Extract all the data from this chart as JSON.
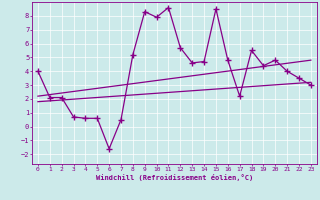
{
  "xlabel": "Windchill (Refroidissement éolien,°C)",
  "xlim": [
    -0.5,
    23.5
  ],
  "ylim": [
    -2.7,
    9.0
  ],
  "yticks": [
    -2,
    -1,
    0,
    1,
    2,
    3,
    4,
    5,
    6,
    7,
    8
  ],
  "xticks": [
    0,
    1,
    2,
    3,
    4,
    5,
    6,
    7,
    8,
    9,
    10,
    11,
    12,
    13,
    14,
    15,
    16,
    17,
    18,
    19,
    20,
    21,
    22,
    23
  ],
  "bg_color": "#cceaea",
  "line_color": "#880088",
  "line1": {
    "x": [
      0,
      1,
      2,
      3,
      4,
      5,
      6,
      7,
      8,
      9,
      10,
      11,
      12,
      13,
      14,
      15,
      16,
      17,
      18,
      19,
      20,
      21,
      22,
      23
    ],
    "y": [
      4.0,
      2.1,
      2.1,
      0.7,
      0.6,
      0.6,
      -1.6,
      0.5,
      5.2,
      8.3,
      7.9,
      8.6,
      5.7,
      4.6,
      4.7,
      8.5,
      4.8,
      2.2,
      5.5,
      4.4,
      4.8,
      4.0,
      3.5,
      3.0
    ]
  },
  "line2": {
    "x": [
      0,
      23
    ],
    "y": [
      1.8,
      3.2
    ]
  },
  "line3": {
    "x": [
      0,
      23
    ],
    "y": [
      2.2,
      4.8
    ]
  }
}
